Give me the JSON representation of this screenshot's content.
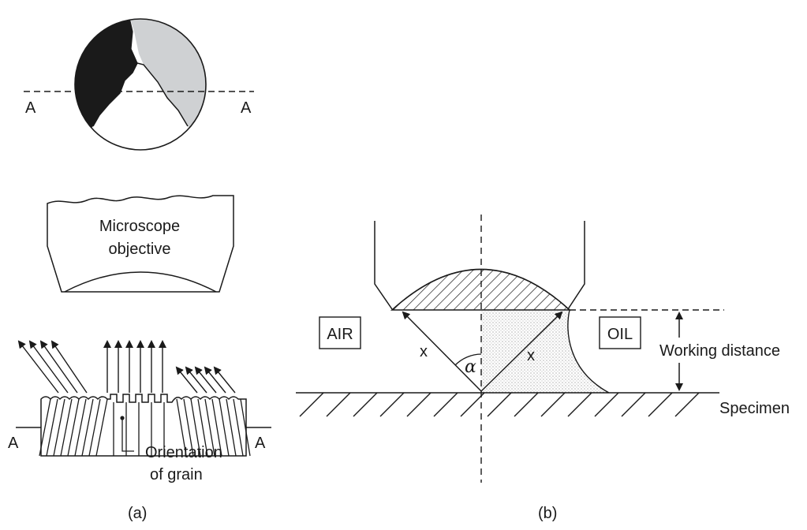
{
  "panel_a": {
    "caption": "(a)",
    "section_label_left": "A",
    "section_label_right": "A",
    "objective_line1": "Microscope",
    "objective_line2": "objective",
    "section_view_label_left": "A",
    "section_view_label_right": "A",
    "grain_line1": "Orientation",
    "grain_line2": "of grain",
    "grain_colors": {
      "dark": "#1a1a1a",
      "light": "#cfd1d3",
      "white": "#ffffff"
    }
  },
  "panel_b": {
    "caption": "(b)",
    "air_label": "AIR",
    "oil_label": "OIL",
    "ray_left_label": "x",
    "ray_right_label": "x",
    "angle_label": "α",
    "working_distance_label": "Working distance",
    "specimen_label": "Specimen"
  }
}
